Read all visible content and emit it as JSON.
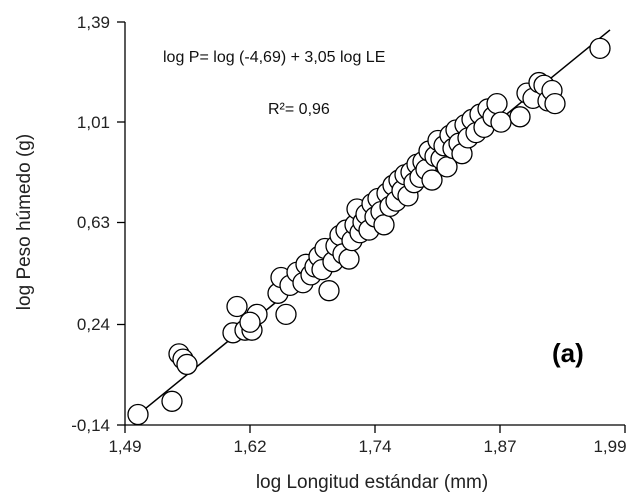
{
  "chart_data": {
    "type": "scatter",
    "title": "",
    "xlabel": "log Longitud estándar (mm)",
    "ylabel": "log Peso húmedo (g)",
    "xlim": [
      1.49,
      1.99
    ],
    "ylim": [
      -0.14,
      1.39
    ],
    "x_ticks": [
      "1,49",
      "1,62",
      "1,74",
      "1,87",
      "1,99"
    ],
    "y_ticks": [
      "-0,14",
      "0,24",
      "0,63",
      "1,01",
      "1,39"
    ],
    "x_tick_values": [
      1.49,
      1.62,
      1.74,
      1.87,
      1.99
    ],
    "y_tick_values": [
      -0.14,
      0.24,
      0.63,
      1.01,
      1.39
    ],
    "equation": "log P= log (-4,69) + 3,05 log LE",
    "r_squared": "R²= 0,96",
    "panel_label": "(a)",
    "fit_line": {
      "x": [
        1.5,
        1.975
      ],
      "y": [
        -0.11,
        1.36
      ]
    },
    "points": [
      {
        "x": 1.503,
        "y": -0.1
      },
      {
        "x": 1.537,
        "y": -0.05
      },
      {
        "x": 1.544,
        "y": 0.13
      },
      {
        "x": 1.548,
        "y": 0.11
      },
      {
        "x": 1.552,
        "y": 0.09
      },
      {
        "x": 1.598,
        "y": 0.21
      },
      {
        "x": 1.602,
        "y": 0.31
      },
      {
        "x": 1.61,
        "y": 0.22
      },
      {
        "x": 1.617,
        "y": 0.22
      },
      {
        "x": 1.622,
        "y": 0.28
      },
      {
        "x": 1.615,
        "y": 0.25
      },
      {
        "x": 1.643,
        "y": 0.36
      },
      {
        "x": 1.646,
        "y": 0.42
      },
      {
        "x": 1.651,
        "y": 0.28
      },
      {
        "x": 1.655,
        "y": 0.39
      },
      {
        "x": 1.662,
        "y": 0.44
      },
      {
        "x": 1.668,
        "y": 0.4
      },
      {
        "x": 1.671,
        "y": 0.47
      },
      {
        "x": 1.676,
        "y": 0.43
      },
      {
        "x": 1.68,
        "y": 0.46
      },
      {
        "x": 1.684,
        "y": 0.5
      },
      {
        "x": 1.687,
        "y": 0.45
      },
      {
        "x": 1.69,
        "y": 0.53
      },
      {
        "x": 1.694,
        "y": 0.37
      },
      {
        "x": 1.698,
        "y": 0.48
      },
      {
        "x": 1.701,
        "y": 0.54
      },
      {
        "x": 1.705,
        "y": 0.58
      },
      {
        "x": 1.708,
        "y": 0.51
      },
      {
        "x": 1.711,
        "y": 0.6
      },
      {
        "x": 1.714,
        "y": 0.49
      },
      {
        "x": 1.717,
        "y": 0.56
      },
      {
        "x": 1.72,
        "y": 0.62
      },
      {
        "x": 1.722,
        "y": 0.68
      },
      {
        "x": 1.725,
        "y": 0.59
      },
      {
        "x": 1.728,
        "y": 0.63
      },
      {
        "x": 1.731,
        "y": 0.66
      },
      {
        "x": 1.734,
        "y": 0.6
      },
      {
        "x": 1.737,
        "y": 0.7
      },
      {
        "x": 1.74,
        "y": 0.65
      },
      {
        "x": 1.743,
        "y": 0.72
      },
      {
        "x": 1.746,
        "y": 0.67
      },
      {
        "x": 1.749,
        "y": 0.62
      },
      {
        "x": 1.752,
        "y": 0.74
      },
      {
        "x": 1.755,
        "y": 0.69
      },
      {
        "x": 1.758,
        "y": 0.77
      },
      {
        "x": 1.761,
        "y": 0.71
      },
      {
        "x": 1.764,
        "y": 0.79
      },
      {
        "x": 1.767,
        "y": 0.75
      },
      {
        "x": 1.77,
        "y": 0.81
      },
      {
        "x": 1.773,
        "y": 0.73
      },
      {
        "x": 1.776,
        "y": 0.82
      },
      {
        "x": 1.779,
        "y": 0.78
      },
      {
        "x": 1.782,
        "y": 0.85
      },
      {
        "x": 1.785,
        "y": 0.8
      },
      {
        "x": 1.788,
        "y": 0.86
      },
      {
        "x": 1.791,
        "y": 0.83
      },
      {
        "x": 1.794,
        "y": 0.9
      },
      {
        "x": 1.797,
        "y": 0.79
      },
      {
        "x": 1.8,
        "y": 0.88
      },
      {
        "x": 1.803,
        "y": 0.94
      },
      {
        "x": 1.806,
        "y": 0.87
      },
      {
        "x": 1.809,
        "y": 0.92
      },
      {
        "x": 1.812,
        "y": 0.84
      },
      {
        "x": 1.815,
        "y": 0.96
      },
      {
        "x": 1.818,
        "y": 0.91
      },
      {
        "x": 1.821,
        "y": 0.98
      },
      {
        "x": 1.824,
        "y": 0.93
      },
      {
        "x": 1.827,
        "y": 0.89
      },
      {
        "x": 1.83,
        "y": 1.0
      },
      {
        "x": 1.833,
        "y": 0.95
      },
      {
        "x": 1.837,
        "y": 1.02
      },
      {
        "x": 1.841,
        "y": 0.97
      },
      {
        "x": 1.845,
        "y": 1.04
      },
      {
        "x": 1.849,
        "y": 0.99
      },
      {
        "x": 1.853,
        "y": 1.06
      },
      {
        "x": 1.858,
        "y": 1.03
      },
      {
        "x": 1.862,
        "y": 1.08
      },
      {
        "x": 1.866,
        "y": 1.01
      },
      {
        "x": 1.885,
        "y": 1.03
      },
      {
        "x": 1.892,
        "y": 1.12
      },
      {
        "x": 1.898,
        "y": 1.1
      },
      {
        "x": 1.904,
        "y": 1.16
      },
      {
        "x": 1.909,
        "y": 1.15
      },
      {
        "x": 1.913,
        "y": 1.09
      },
      {
        "x": 1.917,
        "y": 1.13
      },
      {
        "x": 1.92,
        "y": 1.08
      },
      {
        "x": 1.965,
        "y": 1.29
      }
    ]
  }
}
